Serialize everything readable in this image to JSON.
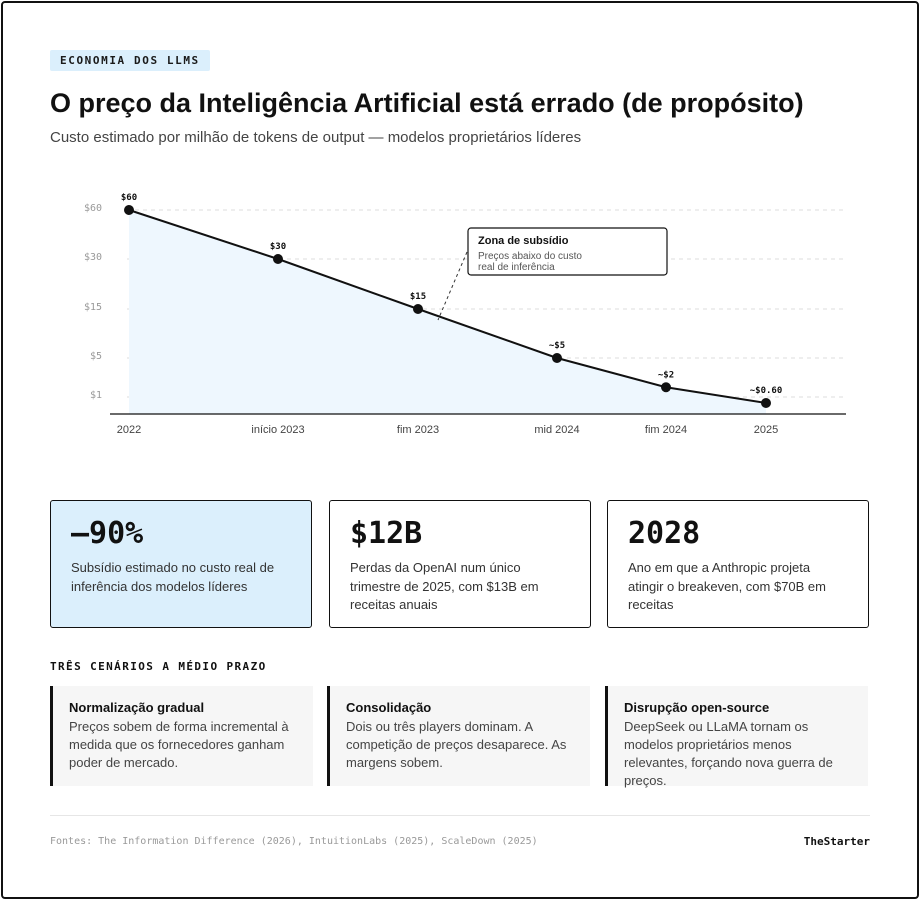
{
  "header": {
    "tag": "ECONOMIA DOS LLMS",
    "title": "O preço da Inteligência Artificial está errado (de propósito)",
    "subtitle": "Custo estimado por milhão de tokens de output — modelos proprietários líderes"
  },
  "chart_data": {
    "type": "line",
    "title": "",
    "xlabel": "",
    "ylabel": "",
    "y_scale": "compressed",
    "y_ticks": [
      {
        "label": "$60",
        "value": 60
      },
      {
        "label": "$30",
        "value": 30
      },
      {
        "label": "$15",
        "value": 15
      },
      {
        "label": "$5",
        "value": 5
      },
      {
        "label": "$1",
        "value": 1
      }
    ],
    "categories": [
      "2022",
      "início 2023",
      "fim 2023",
      "mid 2024",
      "fim 2024",
      "2025"
    ],
    "values": [
      60,
      30,
      15,
      5,
      2,
      0.6
    ],
    "data_labels": [
      "$60",
      "$30",
      "$15",
      "~$5",
      "~$2",
      "~$0.60"
    ],
    "area_fill": true,
    "grid": "dashed-horizontal",
    "annotation": {
      "title": "Zona de subsídio",
      "text_lines": [
        "Preços abaixo do custo",
        "real de inferência"
      ]
    }
  },
  "stats": [
    {
      "value": "–90%",
      "text": "Subsídio estimado no custo real de inferência dos modelos líderes"
    },
    {
      "value": "$12B",
      "text": "Perdas da OpenAI num único trimestre de 2025, com $13B em receitas anuais"
    },
    {
      "value": "2028",
      "text": "Ano em que a Anthropic projeta atingir o breakeven, com $70B em receitas"
    }
  ],
  "scenarios": {
    "title": "TRÊS CENÁRIOS A MÉDIO PRAZO",
    "items": [
      {
        "title": "Normalização gradual",
        "text": "Preços sobem de forma incremental à medida que os fornecedores ganham poder de mercado."
      },
      {
        "title": "Consolidação",
        "text": "Dois ou três players dominam. A competição de preços desaparece. As margens sobem."
      },
      {
        "title": "Disrupção open-source",
        "text": "DeepSeek ou LLaMA tornam os modelos proprietários menos relevantes, forçando nova guerra de preços."
      }
    ]
  },
  "footer": {
    "sources": "Fontes: The Information Difference (2026), IntuitionLabs (2025), ScaleDown (2025)",
    "brand": "TheStarter"
  },
  "colors": {
    "accent_fill": "#dbeffc",
    "line": "#111111",
    "text": "#111111"
  }
}
